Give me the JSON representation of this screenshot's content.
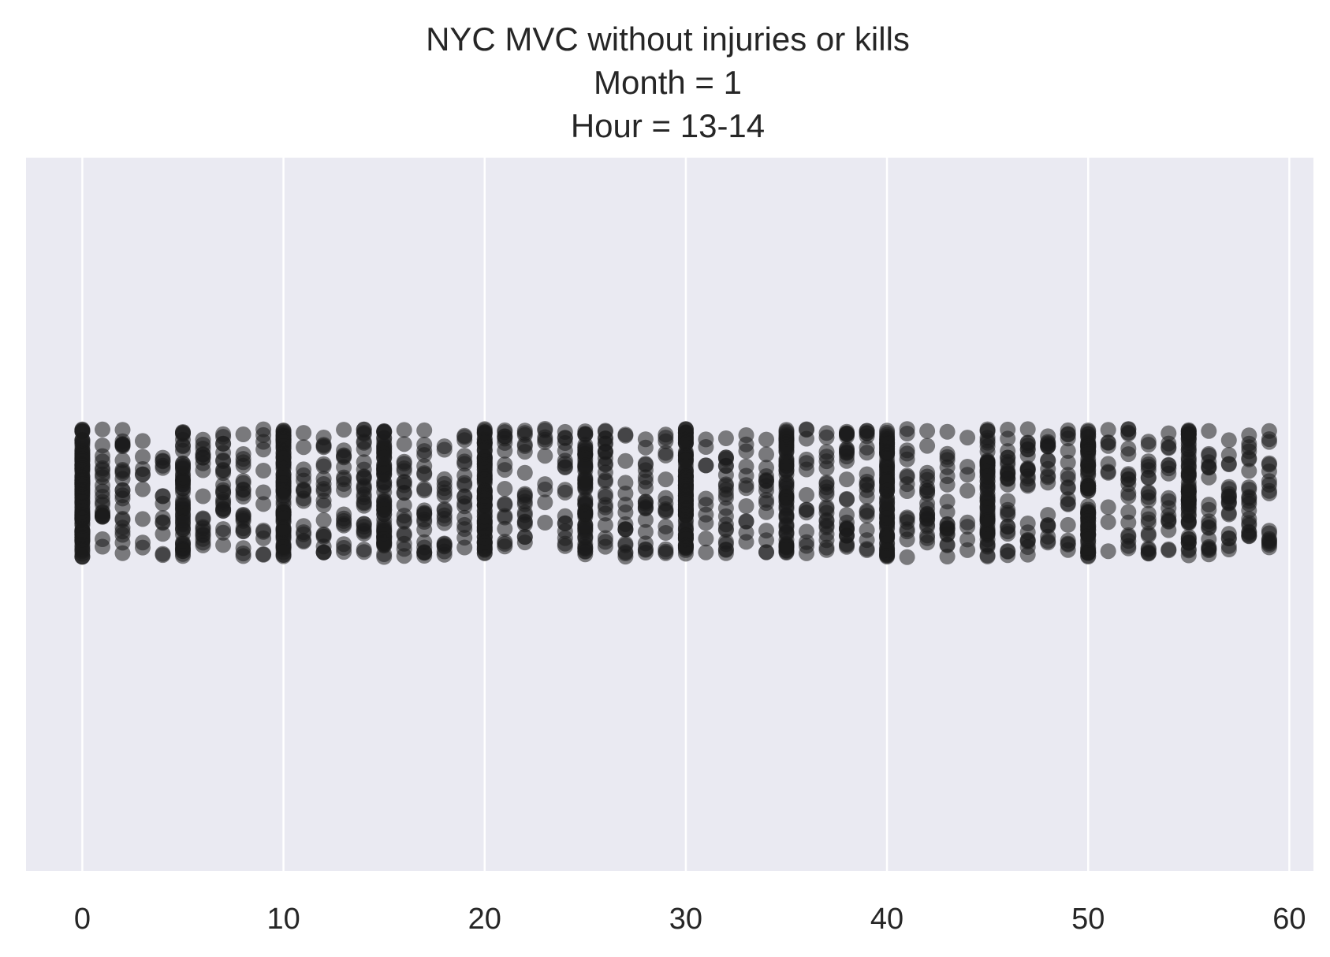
{
  "chart_data": {
    "type": "scatter",
    "subtype": "strip",
    "title": [
      "NYC MVC without injuries or kills",
      "Month = 1",
      "Hour = 13-14"
    ],
    "xlabel": "",
    "ylabel": "",
    "xlim": [
      -2.8,
      61.2
    ],
    "xticks": [
      0,
      10,
      20,
      30,
      40,
      50,
      60
    ],
    "grid": true,
    "legend": "none",
    "colors": {
      "background": "#eaeaf2",
      "grid": "#ffffff",
      "marker": "#1c1c1c",
      "text": "#262626"
    },
    "marker_alpha": 0.55,
    "counts": [
      120,
      22,
      24,
      9,
      14,
      55,
      20,
      24,
      22,
      12,
      95,
      15,
      20,
      18,
      28,
      70,
      20,
      22,
      18,
      18,
      95,
      18,
      20,
      10,
      18,
      62,
      24,
      16,
      20,
      16,
      110,
      10,
      22,
      12,
      16,
      70,
      14,
      22,
      28,
      20,
      90,
      16,
      22,
      20,
      8,
      62,
      26,
      22,
      20,
      18,
      80,
      10,
      20,
      22,
      18,
      62,
      20,
      20,
      22,
      18
    ]
  }
}
